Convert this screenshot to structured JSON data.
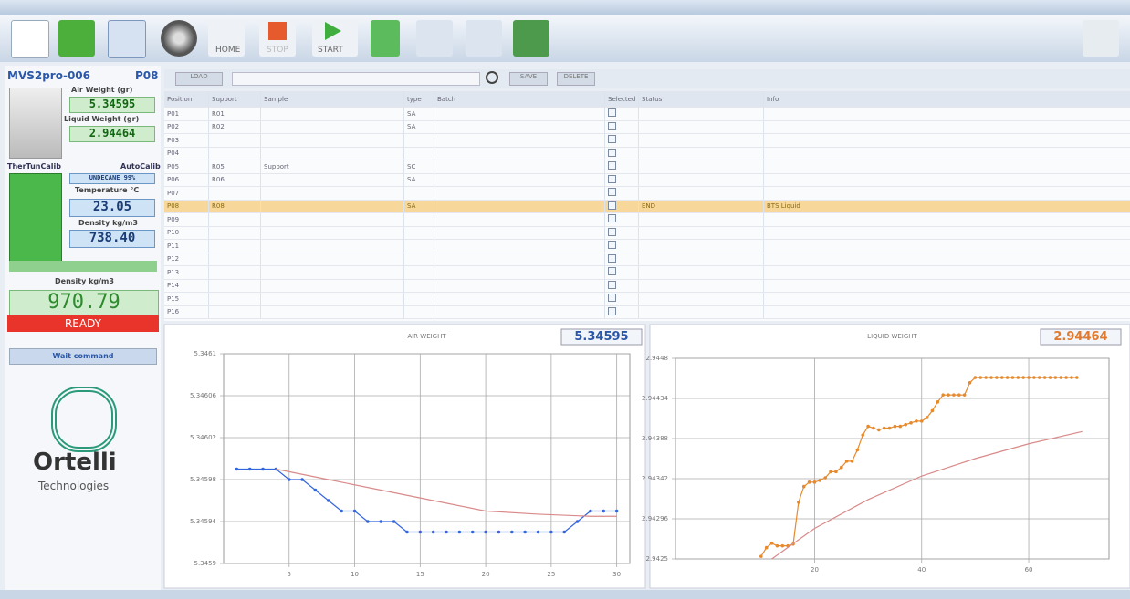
{
  "toolbar": {
    "home": "HOME",
    "stop": "STOP",
    "start": "START"
  },
  "panel": {
    "instrument": "MVS2pro-006",
    "position": "P08",
    "air_weight_label": "Air Weight (gr)",
    "air_weight": "5.34595",
    "liquid_weight_label": "Liquid Weight (gr)",
    "liquid_weight": "2.94464",
    "left_tag": "TherTunCalib",
    "right_tag": "AutoCalib",
    "liquid_name": "UNDECANE 99%",
    "temperature_label": "Temperature °C",
    "temperature": "23.05",
    "density_label": "Density kg/m3",
    "density": "738.40",
    "sample_density_label": "Density kg/m3",
    "sample_density": "970.79",
    "state": "READY",
    "message": "Wait command",
    "brand": "Ortelli",
    "brand_sub": "Technologies"
  },
  "actions": {
    "load": "LOAD",
    "save": "SAVE",
    "delete": "DELETE"
  },
  "table": {
    "columns": [
      "Position",
      "Support",
      "Sample",
      "type",
      "Batch",
      "Selected",
      "Status",
      "Info"
    ],
    "rows": [
      {
        "position": "P01",
        "support": "R01",
        "type": "SA"
      },
      {
        "position": "P02",
        "support": "R02",
        "type": "SA"
      },
      {
        "position": "P03"
      },
      {
        "position": "P04"
      },
      {
        "position": "P05",
        "support": "R05",
        "sample": "Support",
        "type": "SC"
      },
      {
        "position": "P06",
        "support": "R06",
        "type": "SA"
      },
      {
        "position": "P07"
      },
      {
        "position": "P08",
        "support": "R08",
        "type": "SA",
        "status": "END",
        "info": "BTS Liquid",
        "selected": true
      },
      {
        "position": "P09"
      },
      {
        "position": "P10"
      },
      {
        "position": "P11"
      },
      {
        "position": "P12"
      },
      {
        "position": "P13"
      },
      {
        "position": "P14"
      },
      {
        "position": "P15"
      },
      {
        "position": "P16"
      }
    ]
  },
  "charts": [
    {
      "type": "line",
      "title": "AIR WEIGHT",
      "current": "5.34595",
      "current_color": "#2a57a8",
      "xlim": [
        0,
        31
      ],
      "xticks": [
        5,
        10,
        15,
        20,
        25,
        30
      ],
      "ylim": [
        5.3459,
        5.3461
      ],
      "yticks": [
        5.3459,
        5.34594,
        5.34598,
        5.34602,
        5.34606,
        5.3461
      ],
      "series": [
        {
          "color": "#3366dd",
          "markers": true,
          "x": [
            1,
            2,
            3,
            4,
            5,
            6,
            7,
            8,
            9,
            10,
            11,
            12,
            13,
            14,
            15,
            16,
            17,
            18,
            19,
            20,
            21,
            22,
            23,
            24,
            25,
            26,
            27,
            28,
            29,
            30
          ],
          "values": [
            5.34599,
            5.34599,
            5.34599,
            5.34599,
            5.34598,
            5.34598,
            5.34597,
            5.34596,
            5.34595,
            5.34595,
            5.34594,
            5.34594,
            5.34594,
            5.34593,
            5.34593,
            5.34593,
            5.34593,
            5.34593,
            5.34593,
            5.34593,
            5.34593,
            5.34593,
            5.34593,
            5.34593,
            5.34593,
            5.34593,
            5.34594,
            5.34595,
            5.34595,
            5.34595
          ]
        },
        {
          "color": "#d98a8a",
          "markers": false,
          "x": [
            4,
            8,
            12,
            16,
            20,
            24,
            28,
            30
          ],
          "values": [
            5.34599,
            5.34598,
            5.34597,
            5.34596,
            5.34595,
            5.345947,
            5.345945,
            5.345945
          ]
        }
      ]
    },
    {
      "type": "line",
      "title": "LIQUID WEIGHT",
      "current": "2.94464",
      "current_color": "#e07a30",
      "xlim": [
        -6,
        75
      ],
      "xticks": [
        20,
        40,
        60
      ],
      "ylim": [
        2.9425,
        2.9448
      ],
      "yticks": [
        2.9425,
        2.94296,
        2.94342,
        2.94388,
        2.94434,
        2.9448
      ],
      "series": [
        {
          "color": "#e68a2e",
          "markers": true,
          "x": [
            10,
            11,
            12,
            13,
            14,
            15,
            16,
            17,
            18,
            19,
            20,
            21,
            22,
            23,
            24,
            25,
            26,
            27,
            28,
            29,
            30,
            31,
            32,
            33,
            34,
            35,
            36,
            37,
            38,
            39,
            40,
            41,
            42,
            43,
            44,
            45,
            46,
            47,
            48,
            49,
            50,
            51,
            52,
            53,
            54,
            55,
            56,
            57,
            58,
            59,
            60,
            61,
            62,
            63,
            64,
            65,
            66,
            67,
            68,
            69
          ],
          "values": [
            2.94253,
            2.94263,
            2.94268,
            2.94265,
            2.94265,
            2.94265,
            2.94267,
            2.94315,
            2.94333,
            2.94338,
            2.94338,
            2.9434,
            2.94343,
            2.9435,
            2.9435,
            2.94355,
            2.94362,
            2.94362,
            2.94375,
            2.94392,
            2.94402,
            2.944,
            2.94398,
            2.944,
            2.944,
            2.94402,
            2.94402,
            2.94404,
            2.94406,
            2.94408,
            2.94408,
            2.94412,
            2.9442,
            2.9443,
            2.94438,
            2.94438,
            2.94438,
            2.94438,
            2.94438,
            2.94452,
            2.94458,
            2.94458,
            2.94458,
            2.94458,
            2.94458,
            2.94458,
            2.94458,
            2.94458,
            2.94458,
            2.94458,
            2.94458,
            2.94458,
            2.94458,
            2.94458,
            2.94458,
            2.94458,
            2.94458,
            2.94458,
            2.94458,
            2.94458
          ]
        },
        {
          "color": "#d98a8a",
          "markers": false,
          "x": [
            12,
            20,
            30,
            40,
            50,
            60,
            70
          ],
          "values": [
            2.9425,
            2.94285,
            2.94318,
            2.94345,
            2.94365,
            2.94382,
            2.94396
          ]
        }
      ]
    }
  ]
}
